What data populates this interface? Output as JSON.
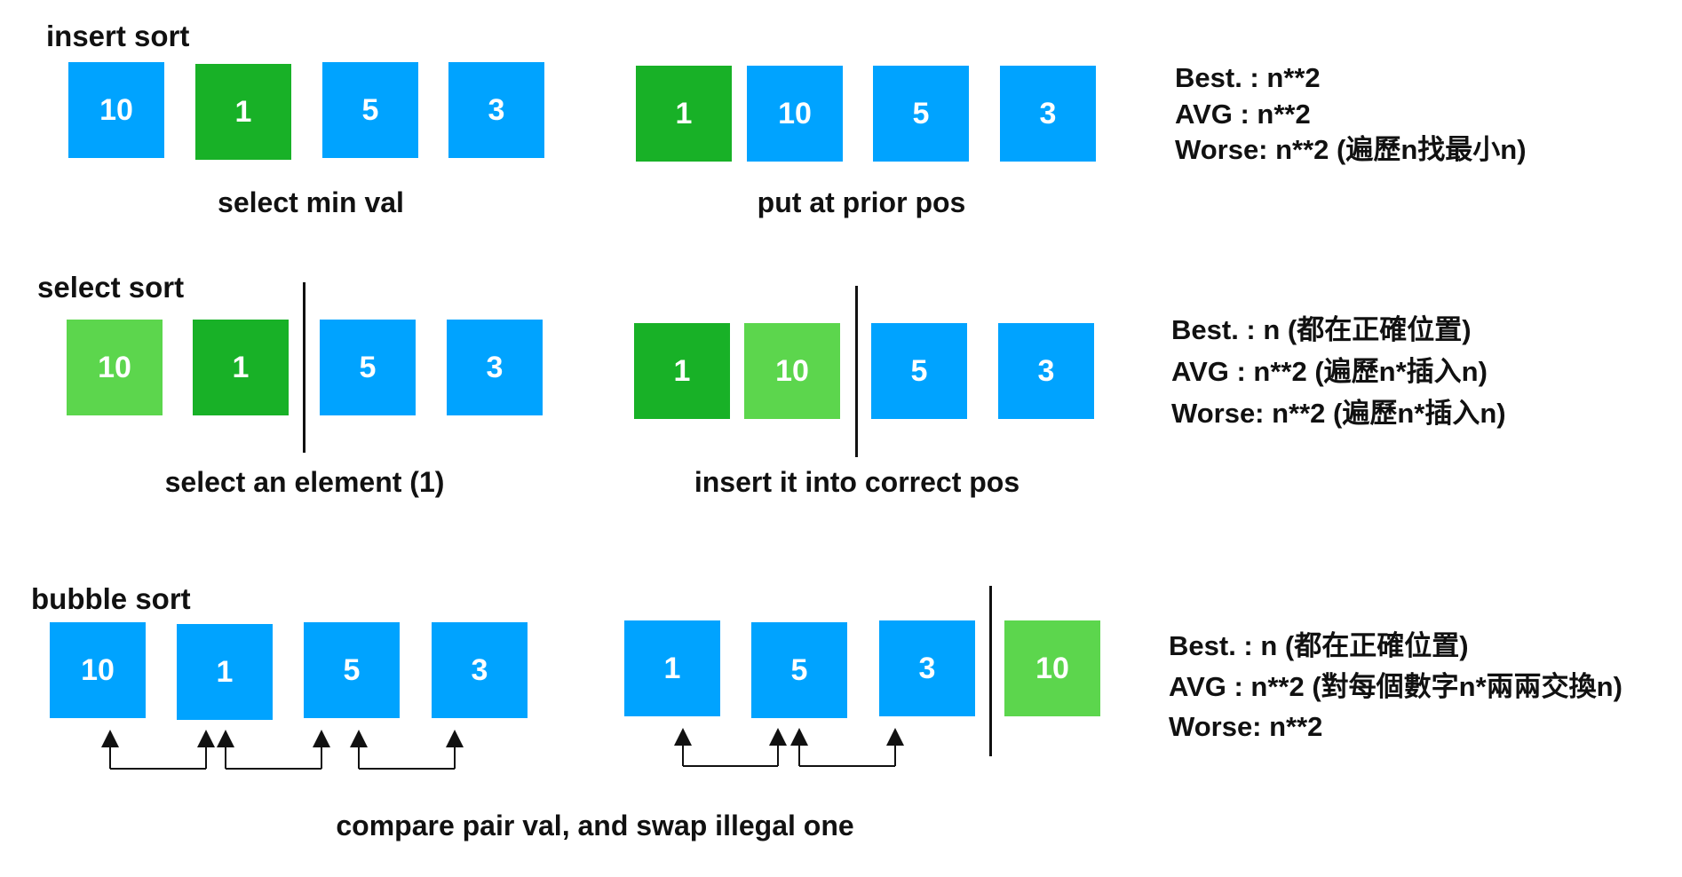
{
  "sections": {
    "insert": {
      "title": "insert sort",
      "left": {
        "boxes": [
          {
            "value": "10",
            "color": "#00a3ff"
          },
          {
            "value": "1",
            "color": "#18b127"
          },
          {
            "value": "5",
            "color": "#00a3ff"
          },
          {
            "value": "3",
            "color": "#00a3ff"
          }
        ],
        "caption": "select min val"
      },
      "right": {
        "boxes": [
          {
            "value": "1",
            "color": "#18b127"
          },
          {
            "value": "10",
            "color": "#00a3ff"
          },
          {
            "value": "5",
            "color": "#00a3ff"
          },
          {
            "value": "3",
            "color": "#00a3ff"
          }
        ],
        "caption": "put at prior pos"
      },
      "stats": {
        "best": "Best.  : n**2",
        "avg": "AVG   : n**2",
        "worse": "Worse: n**2 (遍歷n找最小n)"
      }
    },
    "select": {
      "title": "select sort",
      "left": {
        "boxes": [
          {
            "value": "10",
            "color": "#5cd64d"
          },
          {
            "value": "1",
            "color": "#18b127"
          },
          {
            "value": "5",
            "color": "#00a3ff"
          },
          {
            "value": "3",
            "color": "#00a3ff"
          }
        ],
        "caption": "select an element (1)"
      },
      "right": {
        "boxes": [
          {
            "value": "1",
            "color": "#18b127"
          },
          {
            "value": "10",
            "color": "#5cd64d"
          },
          {
            "value": "5",
            "color": "#00a3ff"
          },
          {
            "value": "3",
            "color": "#00a3ff"
          }
        ],
        "caption": "insert it into correct pos"
      },
      "stats": {
        "best": "Best.  : n (都在正確位置)",
        "avg": "AVG   : n**2 (遍歷n*插入n)",
        "worse": "Worse: n**2 (遍歷n*插入n)"
      }
    },
    "bubble": {
      "title": "bubble sort",
      "left": {
        "boxes": [
          {
            "value": "10",
            "color": "#00a3ff"
          },
          {
            "value": "1",
            "color": "#00a3ff"
          },
          {
            "value": "5",
            "color": "#00a3ff"
          },
          {
            "value": "3",
            "color": "#00a3ff"
          }
        ]
      },
      "right": {
        "boxes": [
          {
            "value": "1",
            "color": "#00a3ff"
          },
          {
            "value": "5",
            "color": "#00a3ff"
          },
          {
            "value": "3",
            "color": "#00a3ff"
          },
          {
            "value": "10",
            "color": "#5cd64d"
          }
        ]
      },
      "caption": "compare pair val, and swap illegal one",
      "stats": {
        "best": "Best.  : n (都在正確位置)",
        "avg": "AVG   : n**2 (對每個數字n*兩兩交換n)",
        "worse": "Worse: n**2"
      }
    }
  }
}
